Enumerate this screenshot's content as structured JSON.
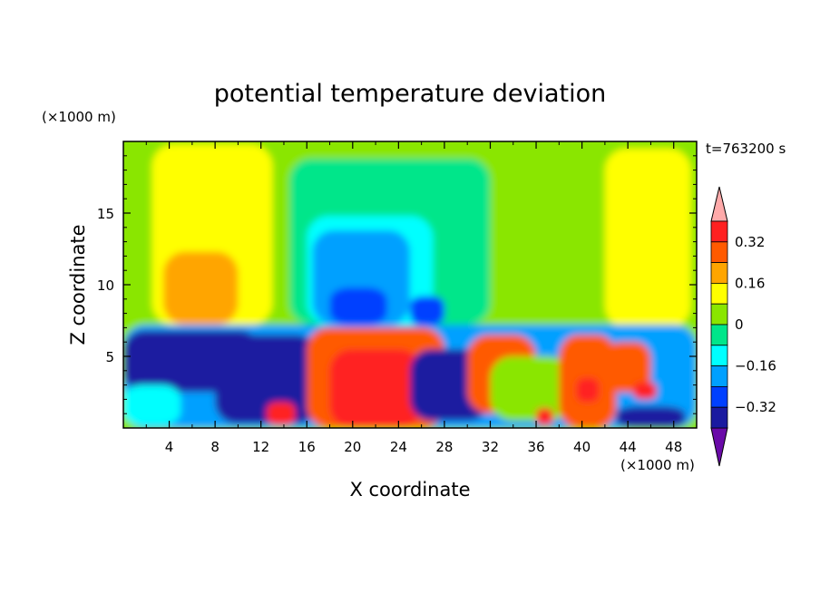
{
  "chart_data": {
    "type": "heatmap",
    "title": "potential temperature deviation",
    "time_label": "t=763200 s",
    "xlabel": "X coordinate",
    "ylabel": "Z coordinate",
    "x_unit_label": "(×1000 m)",
    "y_unit_label": "(×1000 m)",
    "xlim": [
      0,
      50
    ],
    "ylim": [
      0,
      20
    ],
    "x_ticks": [
      "4",
      "8",
      "12",
      "16",
      "20",
      "24",
      "28",
      "32",
      "36",
      "40",
      "44",
      "48"
    ],
    "y_ticks": [
      "5",
      "10",
      "15"
    ],
    "colorbar": {
      "tick_labels": [
        "0.32",
        "0.16",
        "0",
        "−0.16",
        "−0.32"
      ],
      "tick_values": [
        0.32,
        0.16,
        0,
        -0.16,
        -0.32
      ],
      "levels": [
        -0.4,
        -0.32,
        -0.24,
        -0.16,
        -0.08,
        0,
        0.08,
        0.16,
        0.24,
        0.32,
        0.4
      ],
      "colors": [
        "#6a0aa8",
        "#1a1aa0",
        "#0040ff",
        "#00a0ff",
        "#00ffff",
        "#00e68a",
        "#8ae600",
        "#ffff00",
        "#ffa500",
        "#ff5a00",
        "#ff2020",
        "#ffaaaa"
      ]
    },
    "regions": [
      {
        "level": 0.04,
        "x": [
          0,
          50
        ],
        "z": [
          0,
          20
        ]
      },
      {
        "level": 0.14,
        "x": [
          2.5,
          13
        ],
        "z": [
          7.2,
          19.8
        ]
      },
      {
        "level": 0.2,
        "x": [
          3.5,
          10
        ],
        "z": [
          7.2,
          12.3
        ]
      },
      {
        "level": 0.14,
        "x": [
          42,
          49.5
        ],
        "z": [
          7.0,
          19.5
        ]
      },
      {
        "level": -0.04,
        "x": [
          14.5,
          32
        ],
        "z": [
          7.2,
          18.8
        ]
      },
      {
        "level": -0.12,
        "x": [
          16,
          27
        ],
        "z": [
          7.2,
          14.8
        ]
      },
      {
        "level": -0.2,
        "x": [
          16.5,
          25
        ],
        "z": [
          7.2,
          13.8
        ]
      },
      {
        "level": -0.28,
        "x": [
          18,
          23
        ],
        "z": [
          7.2,
          9.8
        ]
      },
      {
        "level": -0.28,
        "x": [
          25,
          28
        ],
        "z": [
          7.2,
          9.2
        ]
      },
      {
        "level": -0.2,
        "x": [
          0,
          50
        ],
        "z": [
          0,
          7.2
        ]
      },
      {
        "level": -0.36,
        "x": [
          0,
          12
        ],
        "z": [
          2.5,
          6.8
        ]
      },
      {
        "level": -0.36,
        "x": [
          8,
          17
        ],
        "z": [
          0.3,
          6.5
        ]
      },
      {
        "level": -0.12,
        "x": [
          0,
          5
        ],
        "z": [
          0.2,
          3.0
        ]
      },
      {
        "level": 0.28,
        "x": [
          16,
          28
        ],
        "z": [
          0,
          7.0
        ]
      },
      {
        "level": 0.36,
        "x": [
          18,
          26
        ],
        "z": [
          0,
          5.5
        ]
      },
      {
        "level": -0.36,
        "x": [
          25,
          32
        ],
        "z": [
          0.5,
          5.5
        ]
      },
      {
        "level": 0.28,
        "x": [
          30,
          36
        ],
        "z": [
          1.0,
          6.5
        ]
      },
      {
        "level": 0.04,
        "x": [
          32,
          39
        ],
        "z": [
          0.5,
          5.0
        ]
      },
      {
        "level": 0.28,
        "x": [
          38,
          43
        ],
        "z": [
          0,
          6.5
        ]
      },
      {
        "level": 0.36,
        "x": [
          39.5,
          41.5
        ],
        "z": [
          1.8,
          3.5
        ]
      },
      {
        "level": -0.36,
        "x": [
          43,
          49
        ],
        "z": [
          0,
          1.5
        ]
      },
      {
        "level": 0.28,
        "x": [
          42,
          46
        ],
        "z": [
          2.5,
          6.0
        ]
      },
      {
        "level": 0.36,
        "x": [
          12.5,
          15
        ],
        "z": [
          0.2,
          1.8
        ]
      },
      {
        "level": 0.36,
        "x": [
          36,
          37.5
        ],
        "z": [
          0.2,
          1.4
        ]
      },
      {
        "level": 0.36,
        "x": [
          44.5,
          46.5
        ],
        "z": [
          2.0,
          3.2
        ]
      }
    ]
  }
}
